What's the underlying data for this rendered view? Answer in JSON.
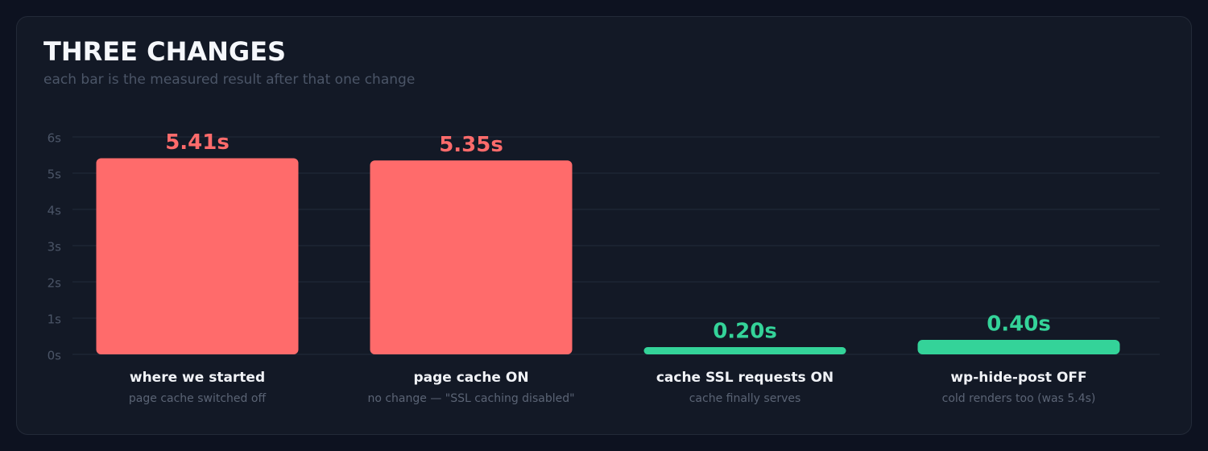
{
  "chart_data": {
    "type": "bar",
    "title": "THREE CHANGES",
    "subtitle": "each bar is the measured result after that one change",
    "categories": [
      "where we started",
      "page cache ON",
      "cache SSL requests ON",
      "wp-hide-post OFF"
    ],
    "sublabels": [
      "page cache switched off",
      "no change — \"SSL caching disabled\"",
      "cache finally serves",
      "cold renders too (was 5.4s)"
    ],
    "values": [
      5.41,
      5.35,
      0.2,
      0.4
    ],
    "value_labels": [
      "5.41s",
      "5.35s",
      "0.20s",
      "0.40s"
    ],
    "colors": [
      "#ff6b6b",
      "#ff6b6b",
      "#34d399",
      "#34d399"
    ],
    "ylim": [
      0,
      6
    ],
    "yticks": [
      {
        "value": 0,
        "label": "0s"
      },
      {
        "value": 1,
        "label": "1s"
      },
      {
        "value": 2,
        "label": "2s"
      },
      {
        "value": 3,
        "label": "3s"
      },
      {
        "value": 4,
        "label": "4s"
      },
      {
        "value": 5,
        "label": "5s"
      },
      {
        "value": 6,
        "label": "6s"
      }
    ],
    "grid": true
  }
}
